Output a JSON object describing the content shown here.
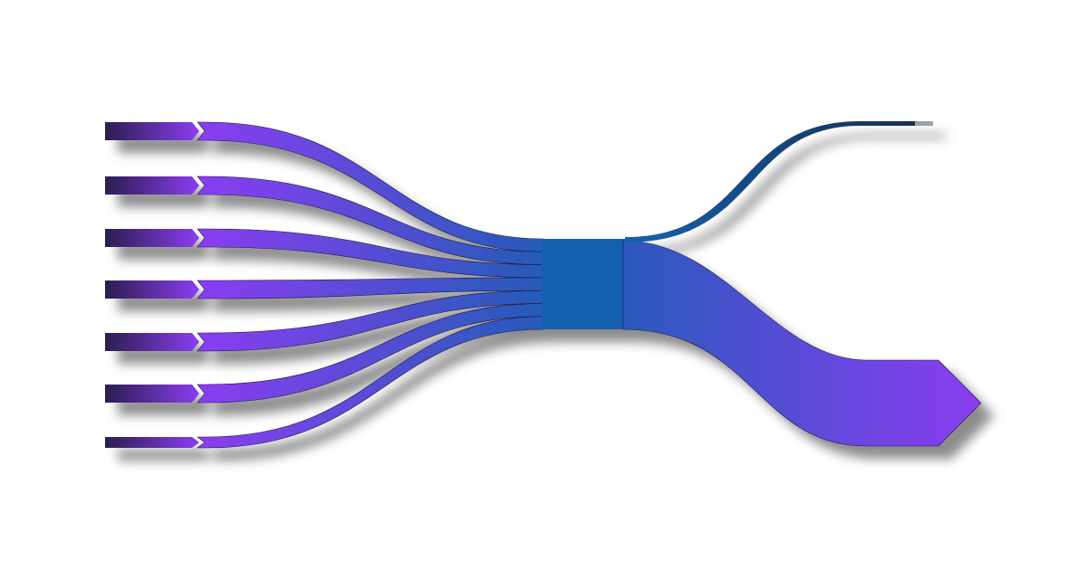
{
  "chart_data": {
    "type": "sankey",
    "title": "",
    "colors": {
      "source_start": "#2b1e4f",
      "source_end": "#8b3df2",
      "link_mid": "#1460b0",
      "outflow_end": "#8b3df2",
      "minor_end": "#1c2a48"
    },
    "sources": [
      {
        "value": 1
      },
      {
        "value": 1
      },
      {
        "value": 1
      },
      {
        "value": 1
      },
      {
        "value": 1
      },
      {
        "value": 1
      },
      {
        "value": 1
      }
    ],
    "targets": [
      {
        "value": 6.9
      },
      {
        "value": 0.1
      }
    ]
  }
}
